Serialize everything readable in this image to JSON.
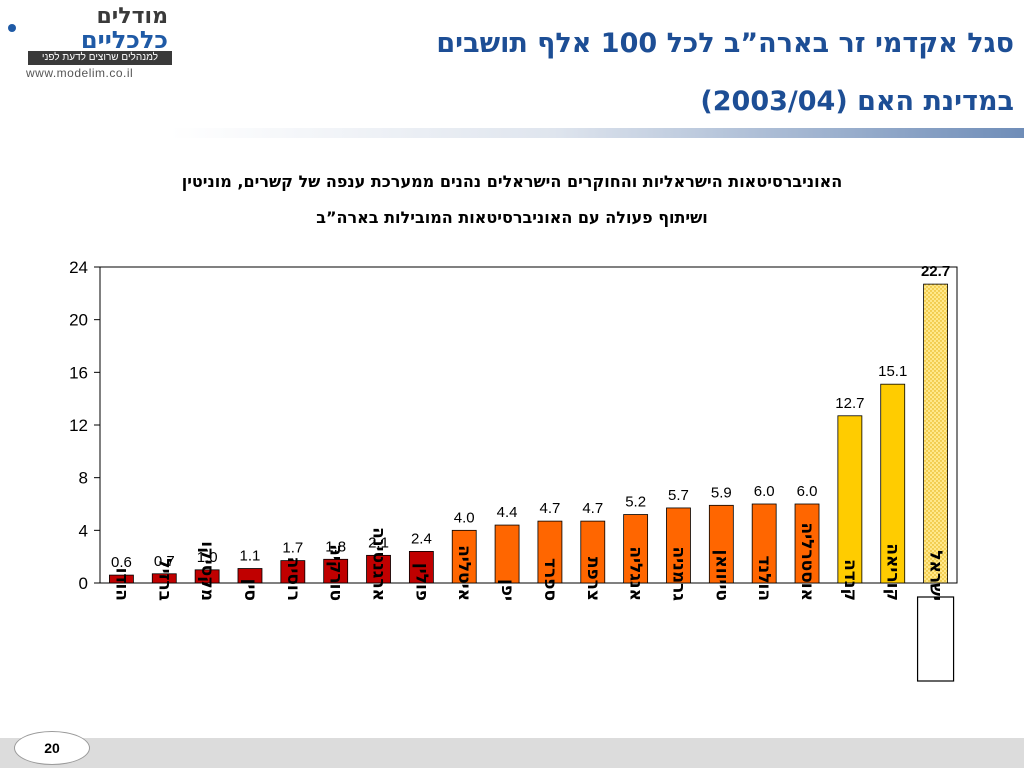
{
  "logo": {
    "brand_top": "מודלים",
    "brand_main": "כלכליים",
    "tagline": "למנהלים שרוצים לדעת לפני",
    "url": "www.modelim.co.il"
  },
  "title": {
    "line1": "סגל אקדמי זר בארה”ב לכל 100 אלף תושבים",
    "line2": "במדינת האם (2003/04)"
  },
  "subtitle": {
    "line1": "האוניברסיטאות הישראליות והחוקרים הישראלים נהנים ממערכת ענפה של קשרים, מוניטין",
    "line2": "ושיתוף פעולה עם האוניברסיטאות המובילות בארה”ב"
  },
  "page_number": "20",
  "colors": {
    "title": "#1d4e95",
    "bar_red": "#c00000",
    "bar_orange": "#ff6600",
    "bar_yellow": "#ffcc00",
    "bar_israel": "#ffe88a"
  },
  "chart_data": {
    "type": "bar",
    "categories": [
      "הודו",
      "ברזיל",
      "מקסיקו",
      "סין",
      "רוסיה",
      "טורקיה",
      "ארגנטינה",
      "פולין",
      "איטליה",
      "יפן",
      "ספרד",
      "צרפת",
      "אנגליה",
      "גרמניה",
      "טייוואן",
      "הולנד",
      "אוסטרליה",
      "קנדה",
      "קוריאה",
      "ישראל"
    ],
    "values": [
      0.6,
      0.7,
      1.0,
      1.1,
      1.7,
      1.8,
      2.1,
      2.4,
      4.0,
      4.4,
      4.7,
      4.7,
      5.2,
      5.7,
      5.9,
      6.0,
      6.0,
      12.7,
      15.1,
      22.7
    ],
    "value_labels": [
      "0.6",
      "0.7",
      "1.0",
      "1.1",
      "1.7",
      "1.8",
      "2.1",
      "2.4",
      "4.0",
      "4.4",
      "4.7",
      "4.7",
      "5.2",
      "5.7",
      "5.9",
      "6.0",
      "6.0",
      "12.7",
      "15.1",
      "22.7"
    ],
    "color_groups": [
      "red",
      "red",
      "red",
      "red",
      "red",
      "red",
      "red",
      "red",
      "orange",
      "orange",
      "orange",
      "orange",
      "orange",
      "orange",
      "orange",
      "orange",
      "orange",
      "yellow",
      "yellow",
      "israel"
    ],
    "highlight": "ישראל",
    "ylim": [
      0,
      24
    ],
    "yticks": [
      0,
      4,
      8,
      12,
      16,
      20,
      24
    ],
    "grid": false,
    "legend": "none"
  }
}
